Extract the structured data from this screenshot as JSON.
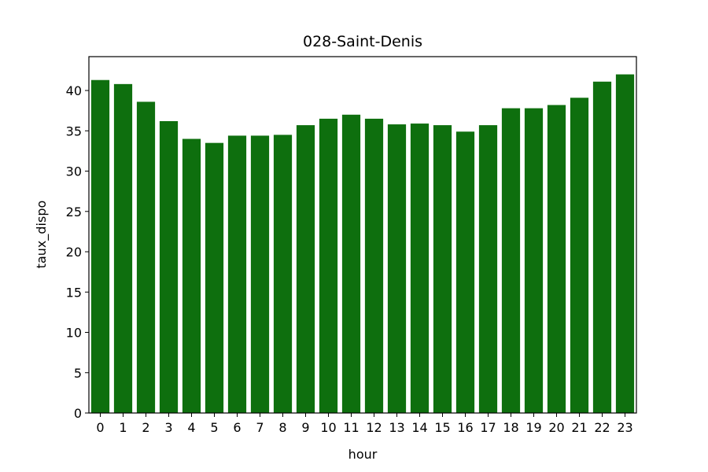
{
  "chart_data": {
    "type": "bar",
    "title": "028-Saint-Denis",
    "xlabel": "hour",
    "ylabel": "taux_dispo",
    "categories": [
      "0",
      "1",
      "2",
      "3",
      "4",
      "5",
      "6",
      "7",
      "8",
      "9",
      "10",
      "11",
      "12",
      "13",
      "14",
      "15",
      "16",
      "17",
      "18",
      "19",
      "20",
      "21",
      "22",
      "23"
    ],
    "values": [
      41.3,
      40.8,
      38.6,
      36.2,
      34.0,
      33.5,
      34.4,
      34.4,
      34.5,
      35.7,
      36.5,
      37.0,
      36.5,
      35.8,
      35.9,
      35.7,
      34.9,
      35.7,
      37.8,
      37.8,
      38.2,
      39.1,
      41.1,
      42.0
    ],
    "ylim": [
      0,
      44.2
    ],
    "yticks": [
      0,
      5,
      10,
      15,
      20,
      25,
      30,
      35,
      40
    ],
    "bar_color": "#0e6f0e",
    "grid": false,
    "legend": "none"
  }
}
